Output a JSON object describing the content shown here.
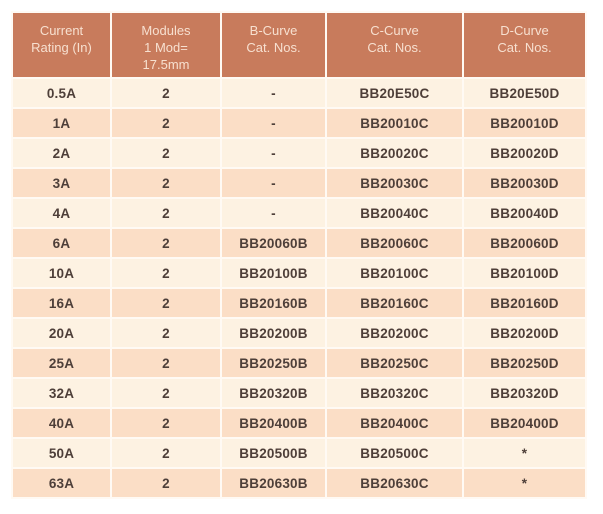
{
  "colors": {
    "header_bg": "#C87B5C",
    "header_text": "#F7E0D0",
    "row_light": "#FDF2E2",
    "row_dark": "#FBDEC6",
    "body_text": "#4E3F39",
    "grid_line": "#FFFAF4"
  },
  "table": {
    "headers": [
      {
        "id": "current-rating",
        "label": "Current\nRating (In)"
      },
      {
        "id": "modules",
        "label": "Modules\n1 Mod=\n17.5mm"
      },
      {
        "id": "b-curve",
        "label": "B-Curve\nCat. Nos."
      },
      {
        "id": "c-curve",
        "label": "C-Curve\nCat. Nos."
      },
      {
        "id": "d-curve",
        "label": "D-Curve\nCat. Nos."
      }
    ],
    "rows": [
      [
        "0.5A",
        "2",
        "-",
        "BB20E50C",
        "BB20E50D"
      ],
      [
        "1A",
        "2",
        "-",
        "BB20010C",
        "BB20010D"
      ],
      [
        "2A",
        "2",
        "-",
        "BB20020C",
        "BB20020D"
      ],
      [
        "3A",
        "2",
        "-",
        "BB20030C",
        "BB20030D"
      ],
      [
        "4A",
        "2",
        "-",
        "BB20040C",
        "BB20040D"
      ],
      [
        "6A",
        "2",
        "BB20060B",
        "BB20060C",
        "BB20060D"
      ],
      [
        "10A",
        "2",
        "BB20100B",
        "BB20100C",
        "BB20100D"
      ],
      [
        "16A",
        "2",
        "BB20160B",
        "BB20160C",
        "BB20160D"
      ],
      [
        "20A",
        "2",
        "BB20200B",
        "BB20200C",
        "BB20200D"
      ],
      [
        "25A",
        "2",
        "BB20250B",
        "BB20250C",
        "BB20250D"
      ],
      [
        "32A",
        "2",
        "BB20320B",
        "BB20320C",
        "BB20320D"
      ],
      [
        "40A",
        "2",
        "BB20400B",
        "BB20400C",
        "BB20400D"
      ],
      [
        "50A",
        "2",
        "BB20500B",
        "BB20500C",
        "*"
      ],
      [
        "63A",
        "2",
        "BB20630B",
        "BB20630C",
        "*"
      ]
    ]
  }
}
